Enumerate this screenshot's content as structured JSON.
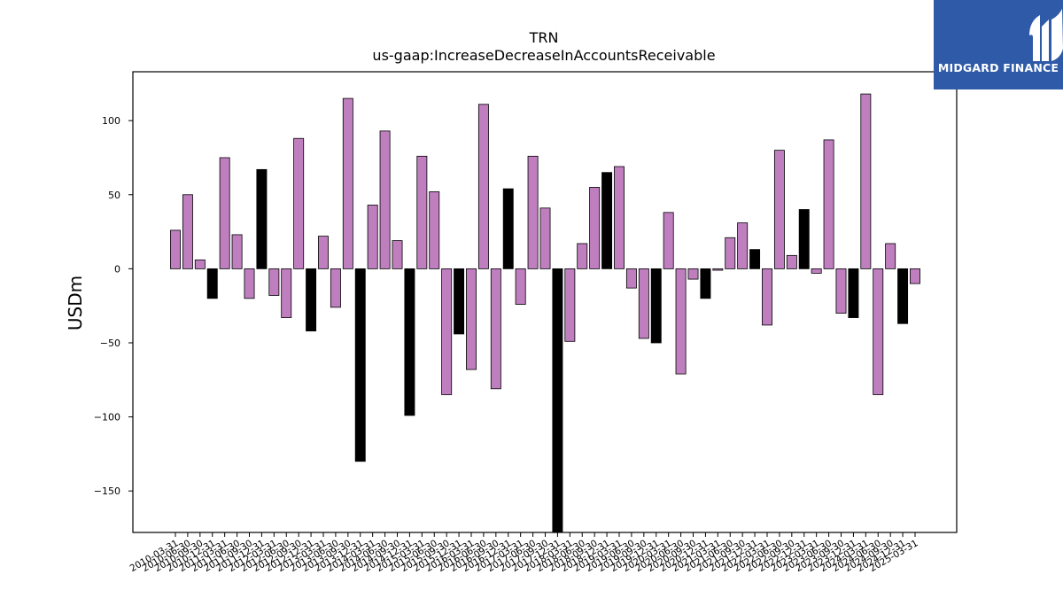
{
  "logo": {
    "text": "MIDGARD FINANCE",
    "color": "#2f5aa8"
  },
  "chart_data": {
    "type": "bar",
    "title": "TRN",
    "subtitle": "us-gaap:IncreaseDecreaseInAccountsReceivable",
    "ylabel": "USDm",
    "xlabel": "",
    "ylim": [
      -178,
      133
    ],
    "yticks": [
      -150,
      -100,
      -50,
      0,
      50,
      100
    ],
    "grid": false,
    "colors": {
      "quarter": "#bf7fbf",
      "annual": "#000000"
    },
    "categories": [
      "2010-03-31",
      "2010-06-30",
      "2010-09-30",
      "2010-12-31",
      "2011-03-31",
      "2011-06-30",
      "2011-09-30",
      "2011-12-31",
      "2012-03-31",
      "2012-06-30",
      "2012-09-30",
      "2012-12-31",
      "2013-03-31",
      "2013-06-30",
      "2013-09-30",
      "2013-12-31",
      "2014-03-31",
      "2014-06-30",
      "2014-09-30",
      "2014-12-31",
      "2015-03-31",
      "2015-06-30",
      "2015-09-30",
      "2015-12-31",
      "2016-03-31",
      "2016-06-30",
      "2016-09-30",
      "2016-12-31",
      "2017-03-31",
      "2017-06-30",
      "2017-09-30",
      "2017-12-31",
      "2018-03-31",
      "2018-06-30",
      "2018-09-30",
      "2018-12-31",
      "2019-03-31",
      "2019-06-30",
      "2019-09-30",
      "2019-12-31",
      "2020-03-31",
      "2020-06-30",
      "2020-09-30",
      "2020-12-31",
      "2021-03-31",
      "2021-06-30",
      "2021-09-30",
      "2021-12-31",
      "2022-03-31",
      "2022-06-30",
      "2022-09-30",
      "2022-12-31",
      "2023-03-31",
      "2023-06-30",
      "2023-09-30",
      "2023-12-31",
      "2024-03-31",
      "2024-06-30",
      "2024-09-30",
      "2024-12-31",
      "2025-03-31"
    ],
    "tick_labels": [
      "2010-03-31",
      "2010-06-30",
      "2010-09-30",
      "2010-12-31",
      "2011-03-31",
      "2011-06-30",
      "2011-09-30",
      "2011-12-31",
      "2012-03-31",
      "2012-06-30",
      "2012-09-30",
      "2012-12-31",
      "2013-03-31",
      "2013-06-30",
      "2013-09-30",
      "2013-12-31",
      "2014-03-31",
      "2014-06-30",
      "2014-09-30",
      "2014-12-31",
      "2015-03-31",
      "2015-06-30",
      "2015-09-30",
      "2015-12-31",
      "2016-03-31",
      "2016-06-30",
      "2016-09-30",
      "2016-12-31",
      "2017-03-31",
      "2017-06-30",
      "2017-09-30",
      "2017-12-31",
      "2018-03-31",
      "2018-06-30",
      "2018-09-30",
      "2018-12-31",
      "2019-03-31",
      "2019-06-30",
      "2019-09-30",
      "2019-12-31",
      "2020-03-31",
      "2020-06-30",
      "2020-09-30",
      "2020-12-31",
      "2021-03-31",
      "2021-06-30",
      "2021-09-30",
      "2021-12-31",
      "2022-03-31",
      "2022-06-30",
      "2022-09-30",
      "2022-12-31",
      "2023-03-31",
      "2023-06-30",
      "2023-09-30",
      "2023-12-31",
      "2024-03-31",
      "2024-06-30",
      "2024-09-30",
      "2024-12-31",
      "2025-03-31"
    ],
    "values": [
      26,
      50,
      6,
      -20,
      75,
      23,
      -20,
      67,
      -18,
      -33,
      88,
      -42,
      22,
      -26,
      115,
      -130,
      43,
      93,
      19,
      -99,
      76,
      52,
      -85,
      -44,
      -68,
      111,
      -81,
      54,
      -24,
      76,
      41,
      -180,
      -49,
      17,
      55,
      65,
      69,
      -13,
      -47,
      -50,
      38,
      -71,
      -7,
      -20,
      -1,
      21,
      31,
      13,
      -38,
      80,
      9,
      40,
      -3,
      87,
      -30,
      -33,
      118,
      -85,
      17,
      -37,
      -10
    ],
    "annual": [
      false,
      false,
      false,
      true,
      false,
      false,
      false,
      true,
      false,
      false,
      false,
      true,
      false,
      false,
      false,
      true,
      false,
      false,
      false,
      true,
      false,
      false,
      false,
      true,
      false,
      false,
      false,
      true,
      false,
      false,
      false,
      true,
      false,
      false,
      false,
      true,
      false,
      false,
      false,
      true,
      false,
      false,
      false,
      true,
      false,
      false,
      false,
      true,
      false,
      false,
      false,
      true,
      false,
      false,
      false,
      true,
      false,
      false,
      false,
      true,
      false
    ]
  }
}
